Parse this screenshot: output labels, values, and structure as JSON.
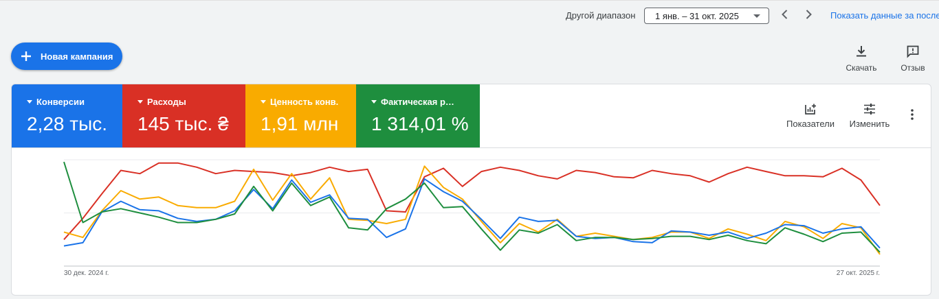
{
  "topbar": {
    "range_label": "Другой диапазон",
    "range_value": "1 янв. – 31 окт. 2025",
    "show_link": "Показать данные за последние"
  },
  "new_campaign": {
    "label": "Новая кампания"
  },
  "toolbar": {
    "download_label": "Скачать",
    "feedback_label": "Отзыв"
  },
  "metrics": [
    {
      "name": "Конверсии",
      "value": "2,28 тыс.",
      "color": "#1a73e8"
    },
    {
      "name": "Расходы",
      "value": "145 тыс. ₴",
      "color": "#d93025"
    },
    {
      "name": "Ценность конв.",
      "value": "1,91 млн",
      "color": "#f9ab00"
    },
    {
      "name": "Фактическая р…",
      "value": "1 314,01 %",
      "color": "#1e8e3e"
    }
  ],
  "card_tools": {
    "indicators_label": "Показатели",
    "edit_label": "Изменить"
  },
  "chart_data": {
    "type": "line",
    "x_start_label": "30 дек. 2024 г.",
    "x_end_label": "27 окт. 2025 г.",
    "grid": true,
    "series": [
      {
        "color": "#d93025",
        "values": [
          25,
          45,
          68,
          90,
          87,
          97,
          97,
          93,
          87,
          90,
          89,
          88,
          85,
          88,
          93,
          89,
          91,
          52,
          51,
          84,
          92,
          75,
          89,
          93,
          90,
          85,
          82,
          90,
          88,
          84,
          83,
          90,
          87,
          85,
          79,
          87,
          93,
          89,
          85,
          85,
          84,
          92,
          81,
          57
        ]
      },
      {
        "color": "#f9ab00",
        "values": [
          32,
          27,
          52,
          71,
          63,
          65,
          57,
          55,
          55,
          61,
          91,
          62,
          87,
          63,
          83,
          44,
          43,
          40,
          44,
          94,
          74,
          63,
          42,
          22,
          40,
          32,
          44,
          28,
          31,
          28,
          25,
          27,
          32,
          32,
          26,
          35,
          30,
          24,
          42,
          37,
          26,
          40,
          36,
          11
        ]
      },
      {
        "color": "#1a73e8",
        "values": [
          19,
          22,
          51,
          61,
          53,
          52,
          45,
          42,
          44,
          52,
          72,
          54,
          81,
          60,
          67,
          45,
          44,
          27,
          35,
          82,
          70,
          61,
          44,
          26,
          46,
          42,
          43,
          28,
          26,
          27,
          23,
          22,
          33,
          32,
          29,
          32,
          26,
          31,
          39,
          38,
          31,
          35,
          37,
          17
        ]
      },
      {
        "color": "#1e8e3e",
        "values": [
          98,
          41,
          51,
          54,
          50,
          46,
          41,
          41,
          44,
          49,
          75,
          52,
          78,
          57,
          65,
          36,
          34,
          54,
          63,
          78,
          55,
          56,
          35,
          15,
          34,
          31,
          39,
          24,
          27,
          27,
          25,
          26,
          28,
          28,
          25,
          29,
          24,
          21,
          36,
          30,
          23,
          31,
          32,
          13
        ]
      }
    ]
  }
}
